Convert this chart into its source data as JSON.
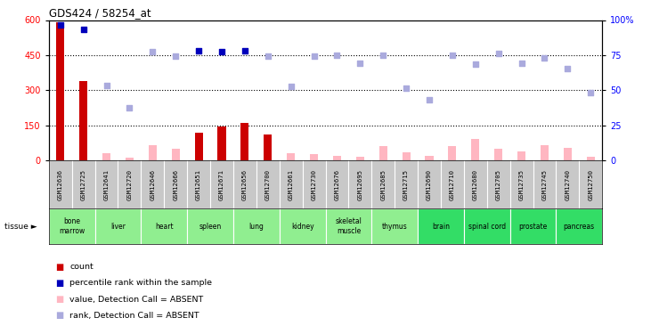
{
  "title": "GDS424 / 58254_at",
  "samples": [
    "GSM12636",
    "GSM12725",
    "GSM12641",
    "GSM12720",
    "GSM12646",
    "GSM12666",
    "GSM12651",
    "GSM12671",
    "GSM12656",
    "GSM12700",
    "GSM12661",
    "GSM12730",
    "GSM12676",
    "GSM12695",
    "GSM12685",
    "GSM12715",
    "GSM12690",
    "GSM12710",
    "GSM12680",
    "GSM12705",
    "GSM12735",
    "GSM12745",
    "GSM12740",
    "GSM12750"
  ],
  "tissues": [
    {
      "name": "bone\nmarrow",
      "start": 0,
      "end": 2,
      "color": "#90EE90"
    },
    {
      "name": "liver",
      "start": 2,
      "end": 4,
      "color": "#90EE90"
    },
    {
      "name": "heart",
      "start": 4,
      "end": 6,
      "color": "#90EE90"
    },
    {
      "name": "spleen",
      "start": 6,
      "end": 8,
      "color": "#90EE90"
    },
    {
      "name": "lung",
      "start": 8,
      "end": 10,
      "color": "#90EE90"
    },
    {
      "name": "kidney",
      "start": 10,
      "end": 12,
      "color": "#90EE90"
    },
    {
      "name": "skeletal\nmuscle",
      "start": 12,
      "end": 14,
      "color": "#90EE90"
    },
    {
      "name": "thymus",
      "start": 14,
      "end": 16,
      "color": "#90EE90"
    },
    {
      "name": "brain",
      "start": 16,
      "end": 18,
      "color": "#33DD66"
    },
    {
      "name": "spinal cord",
      "start": 18,
      "end": 20,
      "color": "#33DD66"
    },
    {
      "name": "prostate",
      "start": 20,
      "end": 22,
      "color": "#33DD66"
    },
    {
      "name": "pancreas",
      "start": 22,
      "end": 24,
      "color": "#33DD66"
    }
  ],
  "count_values": [
    590,
    340,
    0,
    0,
    0,
    0,
    120,
    145,
    160,
    110,
    0,
    0,
    0,
    0,
    0,
    0,
    0,
    0,
    0,
    0,
    0,
    0,
    0,
    0
  ],
  "absent_value_bars": [
    0,
    0,
    30,
    10,
    65,
    50,
    0,
    0,
    0,
    0,
    30,
    25,
    20,
    15,
    60,
    35,
    20,
    60,
    90,
    50,
    40,
    65,
    55,
    15
  ],
  "percentile_rank_present": [
    580,
    560,
    0,
    0,
    0,
    0,
    470,
    465,
    470,
    0,
    0,
    0,
    0,
    0,
    0,
    0,
    0,
    0,
    0,
    0,
    0,
    0,
    0,
    0
  ],
  "percentile_rank_absent": [
    0,
    0,
    320,
    225,
    465,
    445,
    0,
    0,
    0,
    445,
    315,
    445,
    450,
    415,
    450,
    308,
    260,
    450,
    410,
    458,
    415,
    440,
    393,
    290
  ],
  "ylim_left": [
    0,
    600
  ],
  "ylim_right": [
    0,
    100
  ],
  "yticks_left": [
    0,
    150,
    300,
    450,
    600
  ],
  "yticks_right": [
    0,
    25,
    50,
    75,
    100
  ],
  "bar_color_count": "#CC0000",
  "bar_color_absent": "#FFB6C1",
  "dot_color_present": "#0000BB",
  "dot_color_absent": "#AAAADD",
  "bg_sample_row": "#C8C8C8"
}
